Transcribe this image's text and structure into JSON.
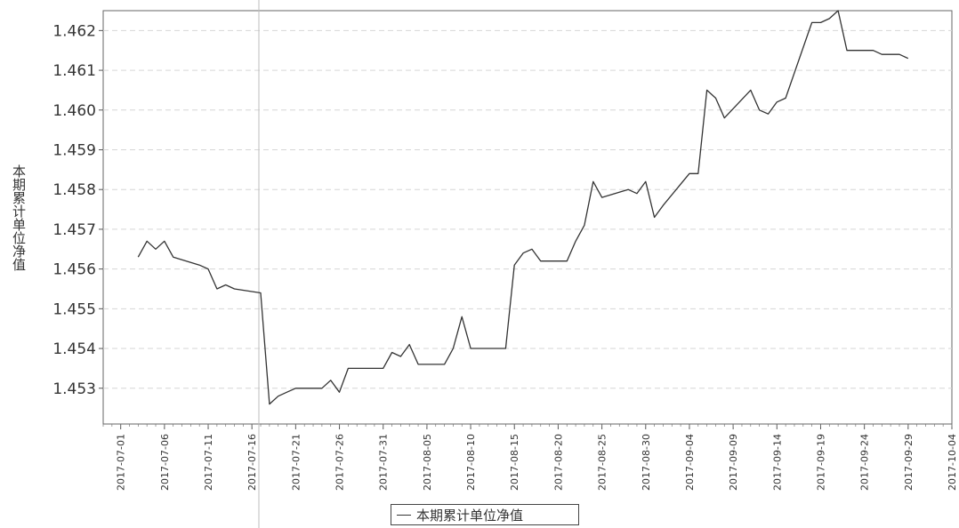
{
  "chart_data": {
    "type": "line",
    "title": "",
    "xlabel": "",
    "ylabel": "本期累计单位净值",
    "ylim": [
      1.4521,
      1.4625
    ],
    "yticks": [
      1.453,
      1.454,
      1.455,
      1.456,
      1.457,
      1.458,
      1.459,
      1.46,
      1.461,
      1.462
    ],
    "ytick_labels": [
      "1.453",
      "1.454",
      "1.455",
      "1.456",
      "1.457",
      "1.458",
      "1.459",
      "1.460",
      "1.461",
      "1.462"
    ],
    "xlim": [
      "2017-06-29",
      "2017-10-04"
    ],
    "xtick_labels": [
      "2017-07-01",
      "2017-07-06",
      "2017-07-11",
      "2017-07-16",
      "2017-07-21",
      "2017-07-26",
      "2017-07-31",
      "2017-08-05",
      "2017-08-10",
      "2017-08-15",
      "2017-08-20",
      "2017-08-25",
      "2017-08-30",
      "2017-09-04",
      "2017-09-09",
      "2017-09-14",
      "2017-09-19",
      "2017-09-24",
      "2017-09-29",
      "2017-10-04"
    ],
    "grid": true,
    "legend_position": "bottom-center",
    "series": [
      {
        "name": "本期累计单位净值",
        "color": "#333333",
        "x": [
          "2017-07-03",
          "2017-07-04",
          "2017-07-05",
          "2017-07-06",
          "2017-07-07",
          "2017-07-10",
          "2017-07-11",
          "2017-07-12",
          "2017-07-13",
          "2017-07-14",
          "2017-07-17",
          "2017-07-18",
          "2017-07-19",
          "2017-07-20",
          "2017-07-21",
          "2017-07-24",
          "2017-07-25",
          "2017-07-26",
          "2017-07-27",
          "2017-07-28",
          "2017-07-31",
          "2017-08-01",
          "2017-08-02",
          "2017-08-03",
          "2017-08-04",
          "2017-08-07",
          "2017-08-08",
          "2017-08-09",
          "2017-08-10",
          "2017-08-11",
          "2017-08-14",
          "2017-08-15",
          "2017-08-16",
          "2017-08-17",
          "2017-08-18",
          "2017-08-21",
          "2017-08-22",
          "2017-08-23",
          "2017-08-24",
          "2017-08-25",
          "2017-08-28",
          "2017-08-29",
          "2017-08-30",
          "2017-08-31",
          "2017-09-01",
          "2017-09-04",
          "2017-09-05",
          "2017-09-06",
          "2017-09-07",
          "2017-09-08",
          "2017-09-11",
          "2017-09-12",
          "2017-09-13",
          "2017-09-14",
          "2017-09-15",
          "2017-09-18",
          "2017-09-19",
          "2017-09-20",
          "2017-09-21",
          "2017-09-22",
          "2017-09-25",
          "2017-09-26",
          "2017-09-27",
          "2017-09-28",
          "2017-09-29"
        ],
        "values": [
          1.4563,
          1.4567,
          1.4565,
          1.4567,
          1.4563,
          1.4561,
          1.456,
          1.4555,
          1.4556,
          1.4555,
          1.4554,
          1.4526,
          1.4528,
          1.4529,
          1.453,
          1.453,
          1.4532,
          1.4529,
          1.4535,
          1.4535,
          1.4535,
          1.4539,
          1.4538,
          1.4541,
          1.4536,
          1.4536,
          1.454,
          1.4548,
          1.454,
          1.454,
          1.454,
          1.4561,
          1.4564,
          1.4565,
          1.4562,
          1.4562,
          1.4567,
          1.4571,
          1.4582,
          1.4578,
          1.458,
          1.4579,
          1.4582,
          1.4573,
          1.4576,
          1.4584,
          1.4584,
          1.4605,
          1.4603,
          1.4598,
          1.4605,
          1.46,
          1.4599,
          1.4602,
          1.4603,
          1.4622,
          1.4622,
          1.4623,
          1.4625,
          1.4615,
          1.4615,
          1.4614,
          1.4614,
          1.4614,
          1.4613
        ]
      }
    ]
  }
}
